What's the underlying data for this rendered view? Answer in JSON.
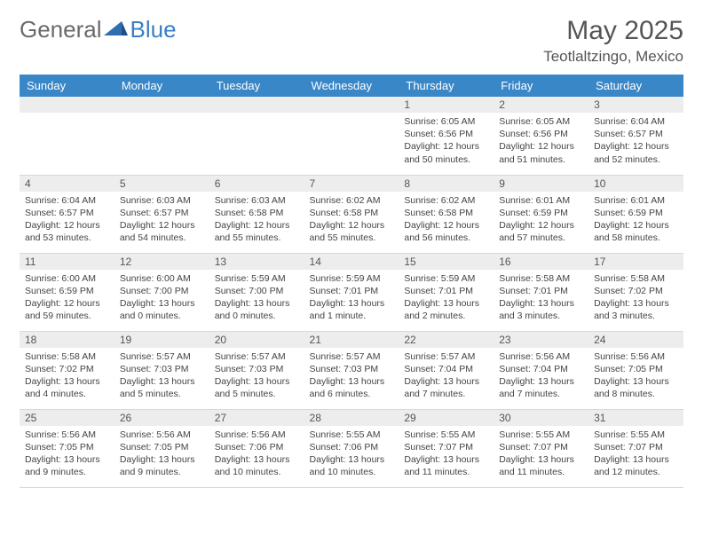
{
  "brand": {
    "part1": "General",
    "part2": "Blue"
  },
  "title": "May 2025",
  "location": "Teotlaltzingo, Mexico",
  "header_bg": "#3a87c7",
  "daynum_bg": "#ededed",
  "weekdays": [
    "Sunday",
    "Monday",
    "Tuesday",
    "Wednesday",
    "Thursday",
    "Friday",
    "Saturday"
  ],
  "weeks": [
    [
      null,
      null,
      null,
      null,
      {
        "n": "1",
        "sr": "Sunrise: 6:05 AM",
        "ss": "Sunset: 6:56 PM",
        "dl1": "Daylight: 12 hours",
        "dl2": "and 50 minutes."
      },
      {
        "n": "2",
        "sr": "Sunrise: 6:05 AM",
        "ss": "Sunset: 6:56 PM",
        "dl1": "Daylight: 12 hours",
        "dl2": "and 51 minutes."
      },
      {
        "n": "3",
        "sr": "Sunrise: 6:04 AM",
        "ss": "Sunset: 6:57 PM",
        "dl1": "Daylight: 12 hours",
        "dl2": "and 52 minutes."
      }
    ],
    [
      {
        "n": "4",
        "sr": "Sunrise: 6:04 AM",
        "ss": "Sunset: 6:57 PM",
        "dl1": "Daylight: 12 hours",
        "dl2": "and 53 minutes."
      },
      {
        "n": "5",
        "sr": "Sunrise: 6:03 AM",
        "ss": "Sunset: 6:57 PM",
        "dl1": "Daylight: 12 hours",
        "dl2": "and 54 minutes."
      },
      {
        "n": "6",
        "sr": "Sunrise: 6:03 AM",
        "ss": "Sunset: 6:58 PM",
        "dl1": "Daylight: 12 hours",
        "dl2": "and 55 minutes."
      },
      {
        "n": "7",
        "sr": "Sunrise: 6:02 AM",
        "ss": "Sunset: 6:58 PM",
        "dl1": "Daylight: 12 hours",
        "dl2": "and 55 minutes."
      },
      {
        "n": "8",
        "sr": "Sunrise: 6:02 AM",
        "ss": "Sunset: 6:58 PM",
        "dl1": "Daylight: 12 hours",
        "dl2": "and 56 minutes."
      },
      {
        "n": "9",
        "sr": "Sunrise: 6:01 AM",
        "ss": "Sunset: 6:59 PM",
        "dl1": "Daylight: 12 hours",
        "dl2": "and 57 minutes."
      },
      {
        "n": "10",
        "sr": "Sunrise: 6:01 AM",
        "ss": "Sunset: 6:59 PM",
        "dl1": "Daylight: 12 hours",
        "dl2": "and 58 minutes."
      }
    ],
    [
      {
        "n": "11",
        "sr": "Sunrise: 6:00 AM",
        "ss": "Sunset: 6:59 PM",
        "dl1": "Daylight: 12 hours",
        "dl2": "and 59 minutes."
      },
      {
        "n": "12",
        "sr": "Sunrise: 6:00 AM",
        "ss": "Sunset: 7:00 PM",
        "dl1": "Daylight: 13 hours",
        "dl2": "and 0 minutes."
      },
      {
        "n": "13",
        "sr": "Sunrise: 5:59 AM",
        "ss": "Sunset: 7:00 PM",
        "dl1": "Daylight: 13 hours",
        "dl2": "and 0 minutes."
      },
      {
        "n": "14",
        "sr": "Sunrise: 5:59 AM",
        "ss": "Sunset: 7:01 PM",
        "dl1": "Daylight: 13 hours",
        "dl2": "and 1 minute."
      },
      {
        "n": "15",
        "sr": "Sunrise: 5:59 AM",
        "ss": "Sunset: 7:01 PM",
        "dl1": "Daylight: 13 hours",
        "dl2": "and 2 minutes."
      },
      {
        "n": "16",
        "sr": "Sunrise: 5:58 AM",
        "ss": "Sunset: 7:01 PM",
        "dl1": "Daylight: 13 hours",
        "dl2": "and 3 minutes."
      },
      {
        "n": "17",
        "sr": "Sunrise: 5:58 AM",
        "ss": "Sunset: 7:02 PM",
        "dl1": "Daylight: 13 hours",
        "dl2": "and 3 minutes."
      }
    ],
    [
      {
        "n": "18",
        "sr": "Sunrise: 5:58 AM",
        "ss": "Sunset: 7:02 PM",
        "dl1": "Daylight: 13 hours",
        "dl2": "and 4 minutes."
      },
      {
        "n": "19",
        "sr": "Sunrise: 5:57 AM",
        "ss": "Sunset: 7:03 PM",
        "dl1": "Daylight: 13 hours",
        "dl2": "and 5 minutes."
      },
      {
        "n": "20",
        "sr": "Sunrise: 5:57 AM",
        "ss": "Sunset: 7:03 PM",
        "dl1": "Daylight: 13 hours",
        "dl2": "and 5 minutes."
      },
      {
        "n": "21",
        "sr": "Sunrise: 5:57 AM",
        "ss": "Sunset: 7:03 PM",
        "dl1": "Daylight: 13 hours",
        "dl2": "and 6 minutes."
      },
      {
        "n": "22",
        "sr": "Sunrise: 5:57 AM",
        "ss": "Sunset: 7:04 PM",
        "dl1": "Daylight: 13 hours",
        "dl2": "and 7 minutes."
      },
      {
        "n": "23",
        "sr": "Sunrise: 5:56 AM",
        "ss": "Sunset: 7:04 PM",
        "dl1": "Daylight: 13 hours",
        "dl2": "and 7 minutes."
      },
      {
        "n": "24",
        "sr": "Sunrise: 5:56 AM",
        "ss": "Sunset: 7:05 PM",
        "dl1": "Daylight: 13 hours",
        "dl2": "and 8 minutes."
      }
    ],
    [
      {
        "n": "25",
        "sr": "Sunrise: 5:56 AM",
        "ss": "Sunset: 7:05 PM",
        "dl1": "Daylight: 13 hours",
        "dl2": "and 9 minutes."
      },
      {
        "n": "26",
        "sr": "Sunrise: 5:56 AM",
        "ss": "Sunset: 7:05 PM",
        "dl1": "Daylight: 13 hours",
        "dl2": "and 9 minutes."
      },
      {
        "n": "27",
        "sr": "Sunrise: 5:56 AM",
        "ss": "Sunset: 7:06 PM",
        "dl1": "Daylight: 13 hours",
        "dl2": "and 10 minutes."
      },
      {
        "n": "28",
        "sr": "Sunrise: 5:55 AM",
        "ss": "Sunset: 7:06 PM",
        "dl1": "Daylight: 13 hours",
        "dl2": "and 10 minutes."
      },
      {
        "n": "29",
        "sr": "Sunrise: 5:55 AM",
        "ss": "Sunset: 7:07 PM",
        "dl1": "Daylight: 13 hours",
        "dl2": "and 11 minutes."
      },
      {
        "n": "30",
        "sr": "Sunrise: 5:55 AM",
        "ss": "Sunset: 7:07 PM",
        "dl1": "Daylight: 13 hours",
        "dl2": "and 11 minutes."
      },
      {
        "n": "31",
        "sr": "Sunrise: 5:55 AM",
        "ss": "Sunset: 7:07 PM",
        "dl1": "Daylight: 13 hours",
        "dl2": "and 12 minutes."
      }
    ]
  ]
}
